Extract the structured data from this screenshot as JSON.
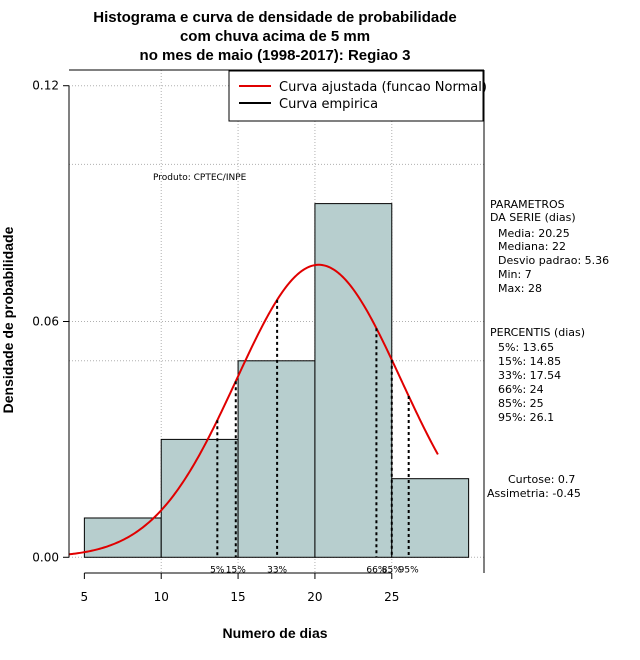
{
  "chart_data": {
    "type": "histogram",
    "title": [
      "Histograma e curva de densidade de probabilidade",
      "com chuva acima de 5 mm",
      "no mes de maio (1998-2017): Regiao 3"
    ],
    "xlabel": "Numero de dias",
    "ylabel": "Densidade de probabilidade",
    "xlim": [
      4,
      31
    ],
    "ylim": [
      -0.004,
      0.124
    ],
    "xticks": [
      5,
      10,
      15,
      20,
      25
    ],
    "yticks": [
      0.0,
      0.06,
      0.12
    ],
    "ytick_labels": [
      "0.00",
      "0.06",
      "0.12"
    ],
    "hgrid": [
      0.0,
      0.05,
      0.06,
      0.1,
      0.12
    ],
    "vgrid": [
      10,
      15,
      20,
      25
    ],
    "bins": [
      {
        "x0": 5,
        "x1": 10,
        "density": 0.01
      },
      {
        "x0": 10,
        "x1": 15,
        "density": 0.03
      },
      {
        "x0": 15,
        "x1": 20,
        "density": 0.05
      },
      {
        "x0": 20,
        "x1": 25,
        "density": 0.09
      },
      {
        "x0": 25,
        "x1": 30,
        "density": 0.02
      }
    ],
    "bar_color": "#b7cece",
    "curve_color": "#e00000",
    "normal_curve": {
      "mean": 20.25,
      "sd": 5.36,
      "x_start": 4,
      "x_end": 28
    },
    "percentile_lines": [
      {
        "label": "5%",
        "value": 13.65
      },
      {
        "label": "15%",
        "value": 14.85
      },
      {
        "label": "33%",
        "value": 17.54
      },
      {
        "label": "66%",
        "value": 24
      },
      {
        "label": "85%",
        "value": 25
      },
      {
        "label": "95%",
        "value": 26.1
      }
    ],
    "legend": {
      "position": "top-right",
      "entries": [
        {
          "label": "Curva ajustada (funcao Normal)",
          "color": "#e00000"
        },
        {
          "label": "Curva empirica",
          "color": "#000000"
        }
      ]
    },
    "product_label": "Produto: CPTEC/INPE",
    "params": {
      "heading": [
        "PARAMETROS",
        "DA SERIE (dias)"
      ],
      "lines": [
        "Media: 20.25",
        "Mediana: 22",
        "Desvio padrao: 5.36",
        "Min: 7",
        "Max: 28"
      ]
    },
    "percentis": {
      "heading": "PERCENTIS (dias)",
      "lines": [
        "5%: 13.65",
        "15%: 14.85",
        "33%: 17.54",
        "66%: 24",
        "85%: 25",
        "95%: 26.1"
      ]
    },
    "shape": {
      "lines": [
        "Curtose: 0.7",
        "Assimetria: -0.45"
      ]
    }
  }
}
